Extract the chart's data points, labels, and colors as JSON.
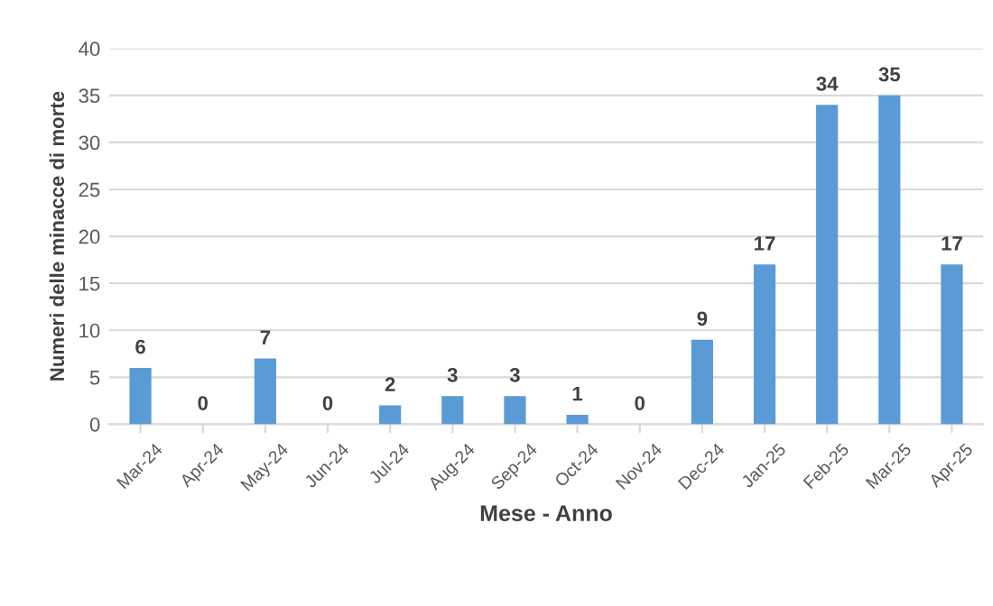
{
  "chart_data": {
    "type": "bar",
    "xlabel": "Mese - Anno",
    "ylabel": "Numeri delle minacce di morte",
    "categories": [
      "Mar-24",
      "Apr-24",
      "May-24",
      "Jun-24",
      "Jul-24",
      "Aug-24",
      "Sep-24",
      "Oct-24",
      "Nov-24",
      "Dec-24",
      "Jan-25",
      "Feb-25",
      "Mar-25",
      "Apr-25"
    ],
    "values": [
      6,
      0,
      7,
      0,
      2,
      3,
      3,
      1,
      0,
      9,
      17,
      34,
      35,
      17
    ],
    "color": "#5b9bd5",
    "ylim": [
      0,
      40
    ],
    "yticks": [
      0,
      5,
      10,
      15,
      20,
      25,
      30,
      35,
      40
    ],
    "grid": "y",
    "data_labels": true
  }
}
